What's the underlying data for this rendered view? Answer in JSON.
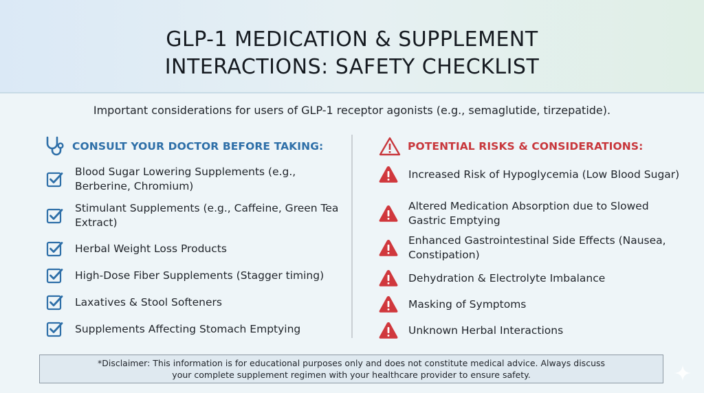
{
  "title_lines": [
    "GLP-1 MEDICATION & SUPPLEMENT",
    "INTERACTIONS: SAFETY CHECKLIST"
  ],
  "subtitle": "Important considerations for users of GLP-1 receptor agonists (e.g., semaglutide, tirzepatide).",
  "left": {
    "heading": "CONSULT YOUR DOCTOR BEFORE TAKING:",
    "icon": "stethoscope-icon",
    "item_icon": "checkbox-checked-icon",
    "items": [
      "Blood Sugar Lowering Supplements (e.g., Berberine, Chromium)",
      "Stimulant Supplements (e.g., Caffeine, Green Tea Extract)",
      "Herbal Weight Loss Products",
      "High-Dose Fiber Supplements (Stagger timing)",
      "Laxatives & Stool Softeners",
      "Supplements Affecting Stomach Emptying"
    ]
  },
  "right": {
    "heading": "POTENTIAL RISKS & CONSIDERATIONS:",
    "icon": "warning-outline-icon",
    "item_icon": "warning-filled-icon",
    "items": [
      "Increased Risk of Hypoglycemia (Low Blood Sugar)",
      "Altered Medication Absorption due to Slowed Gastric Emptying",
      "Enhanced Gastrointestinal Side Effects (Nausea, Constipation)",
      "Dehydration & Electrolyte Imbalance",
      "Masking of Symptoms",
      "Unknown Herbal Interactions"
    ]
  },
  "disclaimer_lines": [
    "*Disclaimer: This information is for educational purposes only and does not constitute medical advice. Always discuss",
    "your complete supplement regimen with your healthcare provider to ensure safety."
  ],
  "colors": {
    "blue_accent": "#2e6fa8",
    "red_accent": "#c8373c",
    "warning_fill": "#d0383d"
  }
}
